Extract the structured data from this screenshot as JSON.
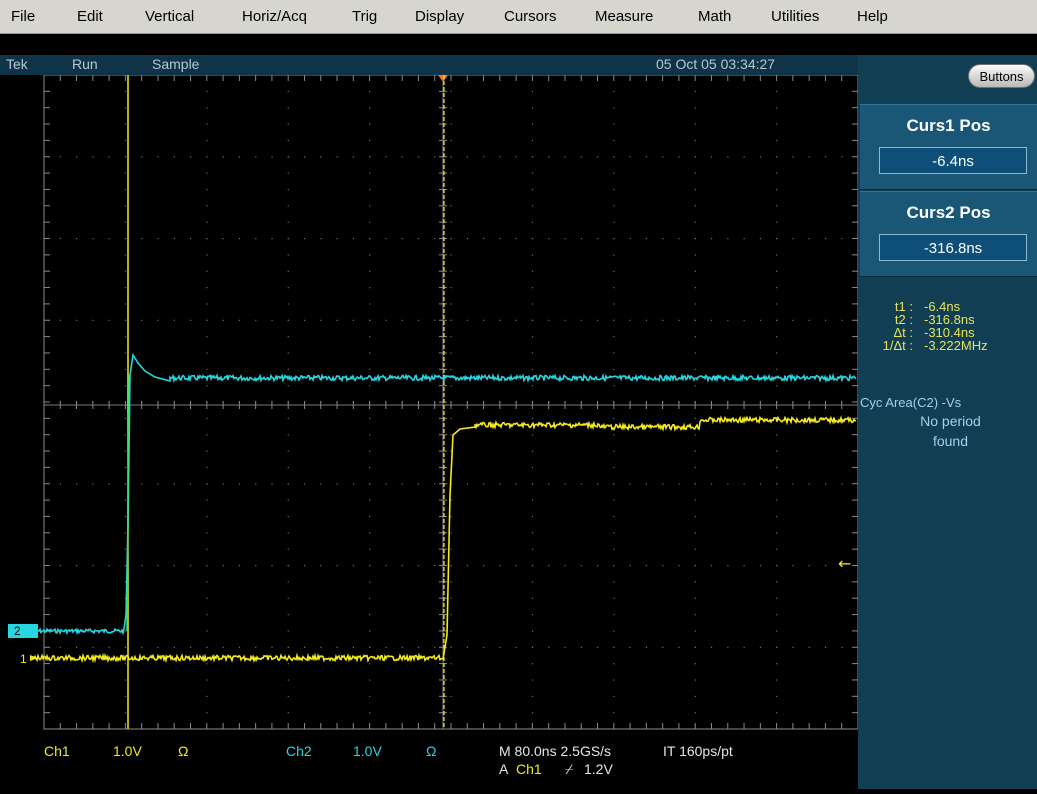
{
  "menu": [
    {
      "label": "File"
    },
    {
      "label": "Edit"
    },
    {
      "label": "Vertical"
    },
    {
      "label": "Horiz/Acq"
    },
    {
      "label": "Trig"
    },
    {
      "label": "Display"
    },
    {
      "label": "Cursors"
    },
    {
      "label": "Measure"
    },
    {
      "label": "Math"
    },
    {
      "label": "Utilities"
    },
    {
      "label": "Help"
    }
  ],
  "status": {
    "brand": "Tek",
    "run_state": "Run",
    "acq_mode": "Sample",
    "datetime": "05 Oct 05 03:34:27"
  },
  "panel": {
    "buttons_label": "Buttons",
    "curs1": {
      "title": "Curs1 Pos",
      "value": "-6.4ns"
    },
    "curs2": {
      "title": "Curs2 Pos",
      "value": "-316.8ns"
    },
    "readouts": [
      {
        "label": "t1 :",
        "value": "-6.4ns"
      },
      {
        "label": "t2 :",
        "value": "-316.8ns"
      },
      {
        "label": "Δt :",
        "value": "-310.4ns"
      },
      {
        "label": "1/Δt :",
        "value": "-3.222MHz"
      }
    ],
    "measurement": {
      "label": "Cyc Area(C2) -Vs",
      "message_line1": "No period",
      "message_line2": "found"
    }
  },
  "markers": {
    "ch1": "1",
    "ch2": "2",
    "trigger_arrow": "←"
  },
  "bottom": {
    "ch1_label": "Ch1",
    "ch1_scale": "1.0V",
    "ch1_coupling": "Ω",
    "ch2_label": "Ch2",
    "ch2_scale": "1.0V",
    "ch2_coupling": "Ω",
    "timebase": "M 80.0ns 2.5GS/s",
    "record": "IT 160ps/pt",
    "trigger_src_prefix": "A",
    "trigger_src": "Ch1",
    "trigger_slope": "⌿",
    "trigger_level": "1.2V"
  },
  "colors": {
    "ch1": "#f2ea1e",
    "ch2": "#27d6e0",
    "grid": "#8a8a8a",
    "panel": "#113e53",
    "menubar": "#d6d6cf"
  }
}
